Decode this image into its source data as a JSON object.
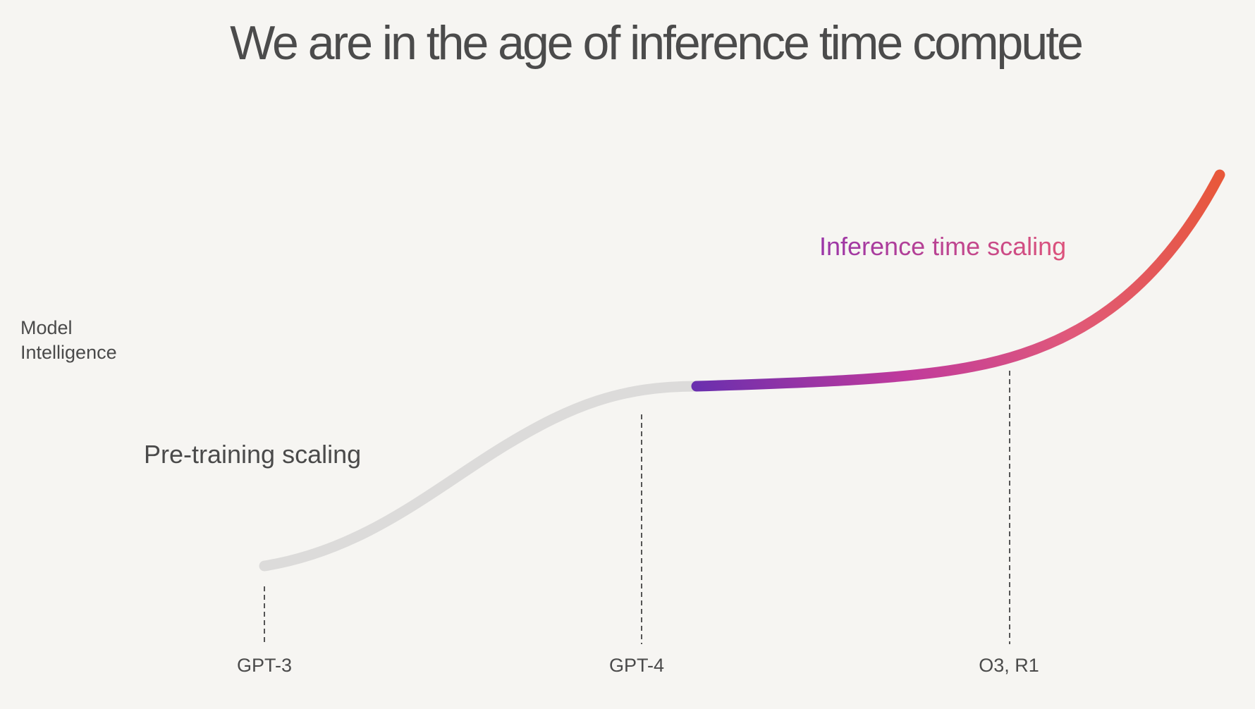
{
  "slide": {
    "title": "We are in the age of inference time compute"
  },
  "diagram": {
    "y_axis_label": [
      "Model",
      "Intelligence"
    ],
    "phases": [
      {
        "label": "Pre-training scaling",
        "color": "#dcdbda"
      },
      {
        "label": "Inference time scaling",
        "gradient": [
          "#6a2fae",
          "#c03a9c",
          "#e0597a",
          "#e8583a"
        ]
      }
    ],
    "milestones": [
      "GPT-3",
      "GPT-4",
      "O3, R1"
    ],
    "colors": {
      "background": "#f6f5f2",
      "text": "#4a4a4a",
      "milestone_line": "#555555"
    }
  }
}
